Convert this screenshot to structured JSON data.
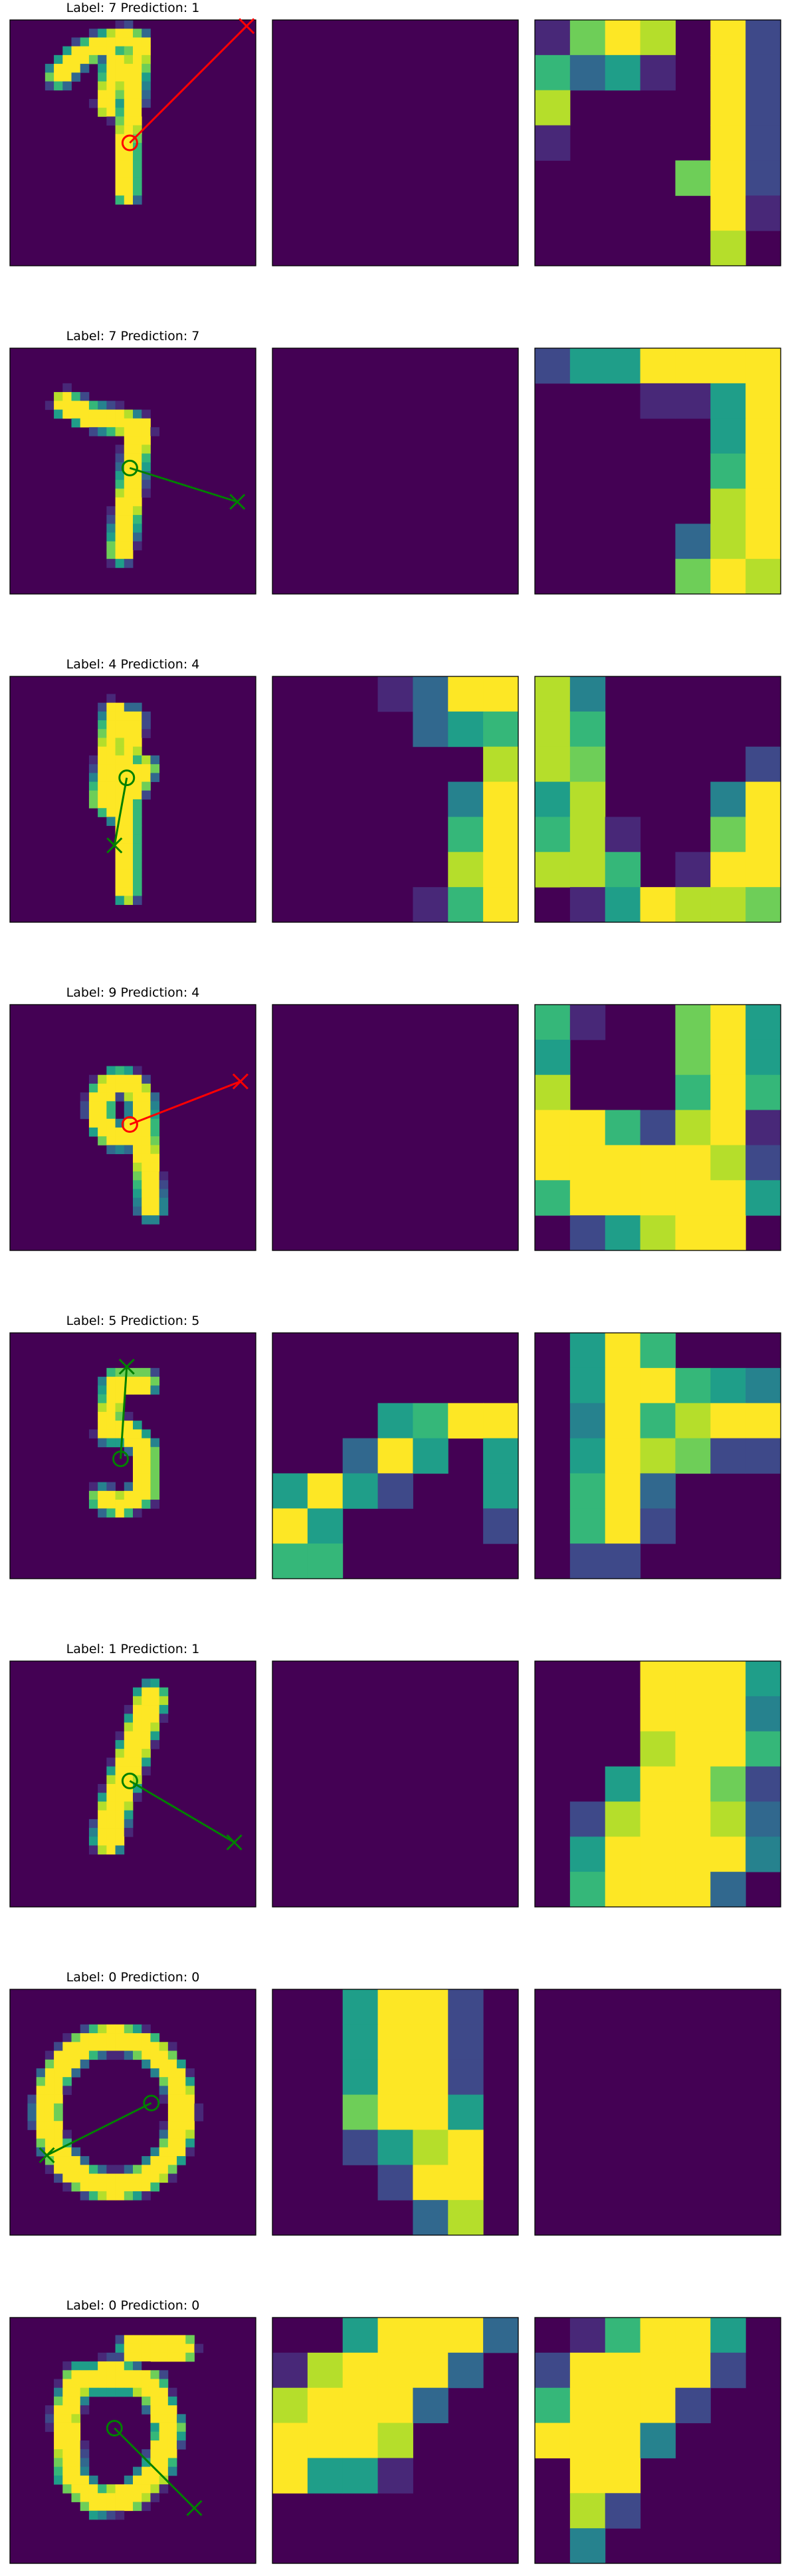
{
  "figure": {
    "background": "#ffffff",
    "colormap": "viridis",
    "panel_background": "#440154",
    "colors": {
      "correct": "#008000",
      "incorrect": "#ff0000"
    }
  },
  "chart_data": [
    {
      "type": "heatmap",
      "title": "Label: 7 Prediction: 1",
      "label": 7,
      "prediction": 1,
      "correct": false,
      "panels": [
        "mnist digit 28x28 with circle-to-cross arrow",
        "empty feature map",
        "feature map 7x7"
      ],
      "arrow": {
        "start": [
          19.5,
          20.0
        ],
        "end": [
          38.5,
          1.0
        ]
      },
      "maps": [
        [
          "#440154",
          "#440154",
          "#440154",
          "#440154",
          "#440154",
          "#440154",
          "#440154"
        ],
        [
          "#440154",
          "#440154",
          "#440154",
          "#440154",
          "#440154",
          "#440154",
          "#440154"
        ],
        [
          "#440154",
          "#440154",
          "#440154",
          "#440154",
          "#440154",
          "#440154",
          "#440154"
        ]
      ]
    },
    {
      "type": "heatmap",
      "title": "Label: 7 Prediction: 7",
      "label": 7,
      "prediction": 7,
      "correct": true,
      "arrow": {
        "start": [
          19.5,
          19.5
        ],
        "end": [
          37.0,
          25.0
        ]
      }
    },
    {
      "type": "heatmap",
      "title": "Label: 4 Prediction: 4",
      "label": 4,
      "prediction": 4,
      "correct": true,
      "arrow": {
        "start": [
          19.0,
          16.5
        ],
        "end": [
          17.0,
          27.5
        ]
      }
    },
    {
      "type": "heatmap",
      "title": "Label: 9 Prediction: 4",
      "label": 9,
      "prediction": 4,
      "correct": false,
      "arrow": {
        "start": [
          19.5,
          19.5
        ],
        "end": [
          37.5,
          12.5
        ]
      }
    },
    {
      "type": "heatmap",
      "title": "Label: 5 Prediction: 5",
      "label": 5,
      "prediction": 5,
      "correct": true,
      "arrow": {
        "start": [
          18.0,
          20.5
        ],
        "end": [
          19.0,
          5.5
        ]
      }
    },
    {
      "type": "heatmap",
      "title": "Label: 1 Prediction: 1",
      "label": 1,
      "prediction": 1,
      "correct": true,
      "arrow": {
        "start": [
          19.5,
          19.5
        ],
        "end": [
          36.5,
          29.5
        ]
      }
    },
    {
      "type": "heatmap",
      "title": "Label: 0 Prediction: 0",
      "label": 0,
      "prediction": 0,
      "correct": true,
      "arrow": {
        "start": [
          23.0,
          18.5
        ],
        "end": [
          6.0,
          27.0
        ]
      }
    },
    {
      "type": "heatmap",
      "title": "Label: 0 Prediction: 0",
      "label": 0,
      "prediction": 0,
      "correct": true,
      "arrow": {
        "start": [
          17.0,
          18.0
        ],
        "end": [
          30.0,
          31.0
        ]
      }
    }
  ]
}
